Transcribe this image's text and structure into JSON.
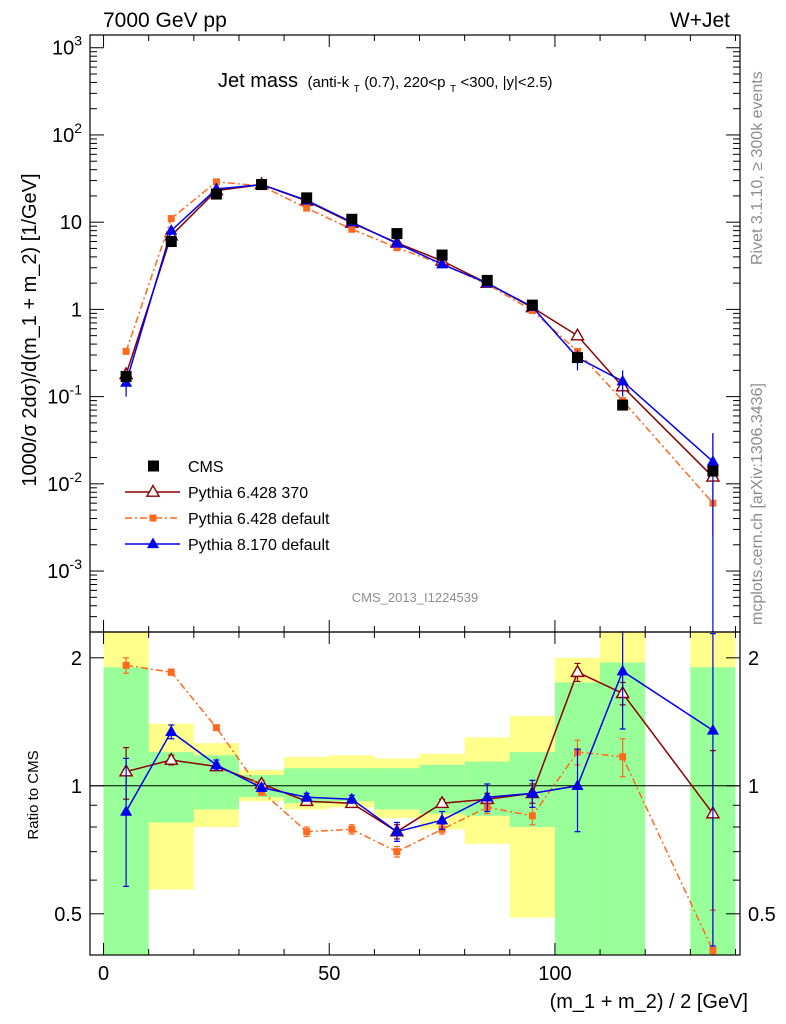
{
  "header": {
    "left": "7000 GeV pp",
    "right": "W+Jet"
  },
  "side_text": {
    "rivet": "Rivet 3.1.10, ≥ 300k events",
    "url": "mcplots.cern.ch [arXiv:1306.3436]"
  },
  "title": {
    "main": "Jet mass",
    "cuts_a": "(anti-k",
    "cuts_sub_t": "T",
    "cuts_b": "(0.7), 220<p",
    "cuts_sub_t2": "T",
    "cuts_c": "<300, |y|<2.5)"
  },
  "watermark": "CMS_2013_I1224539",
  "ylabel": "1000/σ 2dσ)/d(m_1 + m_2) [1/GeV]",
  "ratio_ylabel": "Ratio to CMS",
  "xlabel": "(m_1 + m_2) / 2 [GeV]",
  "chart_data": {
    "type": "line",
    "x_edges": [
      0,
      10,
      20,
      30,
      40,
      50,
      60,
      70,
      80,
      90,
      100,
      110,
      120,
      130,
      140
    ],
    "x_centers": [
      5,
      15,
      25,
      35,
      45,
      55,
      65,
      75,
      85,
      95,
      105,
      115,
      125,
      135
    ],
    "xlim": [
      -3,
      141
    ],
    "ylim_main": [
      0.0002,
      1400
    ],
    "yscale_main": "log",
    "ylim_ratio": [
      0.4,
      2.3
    ],
    "yscale_ratio": "log",
    "x_ticks": [
      0,
      50,
      100
    ],
    "y_ticks_main": [
      {
        "base": "10",
        "exp": "-3",
        "value": 0.001
      },
      {
        "base": "10",
        "exp": "-2",
        "value": 0.01
      },
      {
        "base": "10",
        "exp": "-1",
        "value": 0.1
      },
      {
        "base": "1",
        "exp": "",
        "value": 1
      },
      {
        "base": "10",
        "exp": "",
        "value": 10
      },
      {
        "base": "10",
        "exp": "2",
        "value": 100
      },
      {
        "base": "10",
        "exp": "3",
        "value": 1000
      }
    ],
    "y_ticks_ratio": [
      "0.5",
      "1",
      "2"
    ],
    "legend_position": "lower-left",
    "data": {
      "name": "CMS",
      "x": [
        5,
        15,
        25,
        35,
        45,
        55,
        65,
        75,
        85,
        95,
        105,
        115,
        135
      ],
      "y": [
        0.17,
        6.0,
        21.0,
        27.0,
        19.0,
        10.8,
        7.4,
        4.2,
        2.15,
        1.12,
        0.28,
        0.08,
        0.014
      ]
    },
    "band_inner": [
      [
        0.1,
        1.9
      ],
      [
        0.82,
        1.2
      ],
      [
        0.88,
        1.18
      ],
      [
        0.94,
        1.06
      ],
      [
        0.91,
        1.1
      ],
      [
        0.92,
        1.1
      ],
      [
        0.88,
        1.1
      ],
      [
        0.86,
        1.12
      ],
      [
        0.85,
        1.14
      ],
      [
        0.8,
        1.2
      ],
      [
        0.1,
        1.75
      ],
      [
        0.1,
        1.95
      ],
      null,
      [
        0.1,
        1.9
      ]
    ],
    "band_outer": [
      [
        0.1,
        2.3
      ],
      [
        0.57,
        1.4
      ],
      [
        0.8,
        1.26
      ],
      [
        0.92,
        1.09
      ],
      [
        0.88,
        1.17
      ],
      [
        0.89,
        1.18
      ],
      [
        0.84,
        1.16
      ],
      [
        0.79,
        1.19
      ],
      [
        0.73,
        1.3
      ],
      [
        0.49,
        1.46
      ],
      [
        0.45,
        2.0
      ],
      [
        0.1,
        2.3
      ],
      null,
      [
        0.1,
        2.3
      ]
    ],
    "series": [
      {
        "name": "Pythia 6.428 370",
        "color": "#8b0000",
        "marker": "open-triangle",
        "dash": "",
        "x": [
          5,
          15,
          25,
          35,
          45,
          55,
          65,
          75,
          85,
          95,
          105,
          115,
          135
        ],
        "y": [
          0.18,
          7.0,
          23.0,
          27.0,
          17.5,
          9.8,
          5.8,
          3.6,
          2.0,
          1.05,
          0.5,
          0.13,
          0.012
        ],
        "ratio": [
          1.08,
          1.15,
          1.11,
          1.01,
          0.92,
          0.91,
          0.78,
          0.91,
          0.93,
          0.96,
          1.85,
          1.65,
          0.86
        ],
        "ratio_err": [
          0.15,
          0.03,
          0.02,
          0.02,
          0.02,
          0.02,
          0.03,
          0.02,
          0.03,
          0.05,
          0.09,
          0.1,
          0.35
        ],
        "main_err": [
          null,
          null,
          null,
          null,
          null,
          null,
          null,
          null,
          null,
          null,
          null,
          null,
          [
            0.0025,
            0.038
          ]
        ]
      },
      {
        "name": "Pythia 6.428 default",
        "color": "#ff6a1f",
        "marker": "square",
        "dash": "7,3,2,3",
        "x": [
          5,
          15,
          25,
          35,
          45,
          55,
          65,
          75,
          85,
          95,
          105,
          115,
          135
        ],
        "y": [
          0.33,
          11.0,
          29.0,
          26.0,
          14.5,
          8.3,
          5.1,
          3.3,
          1.95,
          0.97,
          0.33,
          0.09,
          0.006
        ],
        "ratio": [
          1.92,
          1.85,
          1.37,
          0.97,
          0.78,
          0.79,
          0.7,
          0.79,
          0.89,
          0.85,
          1.2,
          1.17,
          0.41
        ],
        "ratio_err": [
          0.08,
          0.03,
          0.02,
          0.02,
          0.02,
          0.02,
          0.02,
          0.02,
          0.03,
          0.04,
          0.08,
          0.12,
          0.1
        ],
        "main_err": [
          null,
          null,
          null,
          null,
          null,
          null,
          null,
          null,
          null,
          null,
          null,
          null,
          null
        ]
      },
      {
        "name": "Pythia 8.170 default",
        "color": "#0000ee",
        "marker": "triangle",
        "dash": "",
        "x": [
          5,
          15,
          25,
          35,
          45,
          55,
          65,
          75,
          85,
          95,
          105,
          115,
          135
        ],
        "y": [
          0.145,
          8.0,
          24.0,
          27.0,
          17.8,
          10.0,
          5.7,
          3.3,
          2.0,
          1.07,
          0.28,
          0.15,
          0.018
        ],
        "ratio": [
          0.87,
          1.34,
          1.12,
          0.99,
          0.94,
          0.93,
          0.78,
          0.83,
          0.94,
          0.96,
          1.0,
          1.86,
          1.35
        ],
        "ratio_err": [
          0.29,
          0.05,
          0.03,
          0.02,
          0.02,
          0.02,
          0.04,
          0.04,
          0.07,
          0.07,
          0.22,
          0.5,
          0.93
        ],
        "main_err": [
          [
            0.1,
            0.2
          ],
          null,
          null,
          null,
          null,
          null,
          null,
          null,
          null,
          null,
          [
            0.2,
            0.34
          ],
          [
            0.1,
            0.2
          ],
          [
            0.0002,
            0.038
          ]
        ]
      }
    ]
  }
}
